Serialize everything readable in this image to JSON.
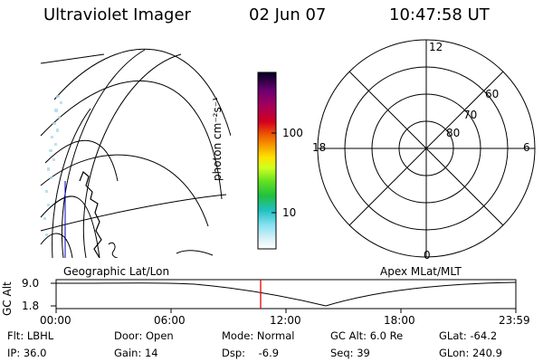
{
  "header": {
    "instrument": "Ultraviolet Imager",
    "date": "02 Jun 07",
    "time": "10:47:58 UT"
  },
  "geo_map": {
    "label": "Geographic Lat/Lon"
  },
  "colorbar": {
    "unit_label": "photon cm⁻²s⁻¹",
    "tick_100": "100",
    "tick_10": "10",
    "colors": [
      "#000020",
      "#2a0040",
      "#6a0070",
      "#a00060",
      "#d40020",
      "#f06000",
      "#f8a000",
      "#ffe000",
      "#d0ff20",
      "#60e020",
      "#20c040",
      "#20c0c0",
      "#80e0f0",
      "#d8f0f8",
      "#ffffff"
    ]
  },
  "polar": {
    "label": "Apex MLat/MLT",
    "mlt_top": "12",
    "mlt_left": "18",
    "mlt_right": "6",
    "mlt_bottom": "0",
    "lat_60": "60",
    "lat_70": "70",
    "lat_80": "80"
  },
  "altitude_plot": {
    "ylabel": "GC Alt",
    "ytick_high": "9.0",
    "ytick_low": "1.8",
    "x_ticks": [
      "00:00",
      "06:00",
      "12:00",
      "18:00",
      "23:59"
    ],
    "marker_color": "#e00000"
  },
  "info": {
    "filter": "Flt: LBHL",
    "ip": "IP: 36.0",
    "door": "Door: Open",
    "gain": "Gain: 14",
    "mode": "Mode: Normal",
    "dsp": "Dsp:    -6.9",
    "gc_alt": "GC Alt: 6.0 Re",
    "seq": "Seq: 39",
    "glat": "GLat: -64.2",
    "glon": "GLon: 240.9"
  }
}
